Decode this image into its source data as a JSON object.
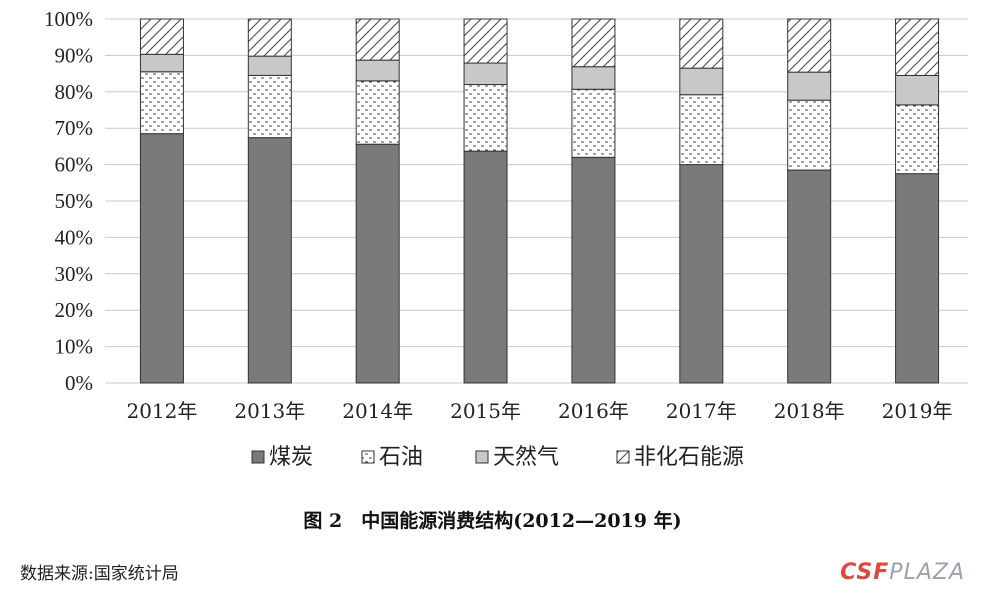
{
  "chart_data": {
    "type": "bar",
    "stacked": true,
    "categories": [
      "2012年",
      "2013年",
      "2014年",
      "2015年",
      "2016年",
      "2017年",
      "2018年",
      "2019年"
    ],
    "series": [
      {
        "name": "煤炭",
        "pattern": "solid-dark-gray",
        "color": "#7a7a7a",
        "values": [
          68.5,
          67.4,
          65.6,
          63.7,
          62.0,
          60.0,
          58.5,
          57.5
        ]
      },
      {
        "name": "石油",
        "pattern": "dotted",
        "color": "#ffffff",
        "values": [
          17.0,
          17.1,
          17.4,
          18.3,
          18.7,
          19.2,
          19.2,
          18.9
        ]
      },
      {
        "name": "天然气",
        "pattern": "solid-light-gray",
        "color": "#c8c8c8",
        "values": [
          4.8,
          5.3,
          5.7,
          5.9,
          6.2,
          7.3,
          7.7,
          8.1
        ]
      },
      {
        "name": "非化石能源",
        "pattern": "diagonal-hatch",
        "color": "#ffffff",
        "values": [
          9.7,
          10.2,
          11.3,
          12.1,
          13.1,
          13.5,
          14.6,
          15.5
        ]
      }
    ],
    "yticks": [
      "0%",
      "10%",
      "20%",
      "30%",
      "40%",
      "50%",
      "60%",
      "70%",
      "80%",
      "90%",
      "100%"
    ],
    "ylim": [
      0,
      100
    ],
    "grid": true,
    "legend_position": "bottom",
    "title": "图 2　中国能源消费结构(2012—2019 年)"
  },
  "caption": "图 2　中国能源消费结构(2012—2019 年)",
  "source": "数据来源:国家统计局",
  "watermark": {
    "part1": "CSF",
    "part2": "PLAZA"
  }
}
